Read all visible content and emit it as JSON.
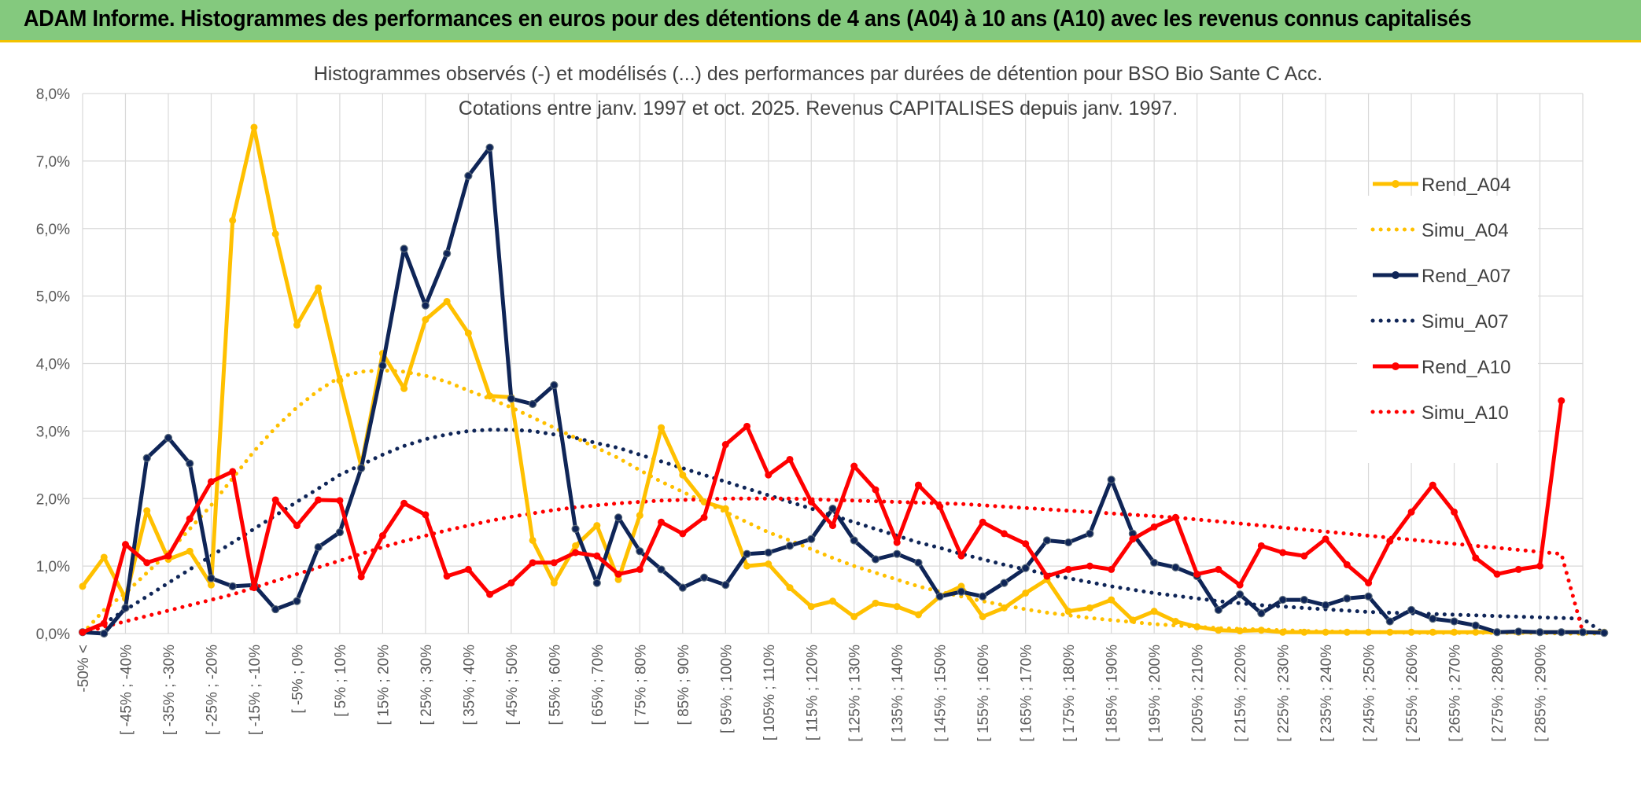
{
  "header": {
    "title": "ADAM Informe. Histogrammes des performances en euros pour des détentions de 4 ans (A04) à 10 ans (A10) avec les revenus connus capitalisés"
  },
  "colors": {
    "banner": "#84c97e",
    "accent": "#f2c200",
    "A04": "#ffc000",
    "A07": "#0f2557",
    "A10": "#ff0000",
    "grid": "#d9d9d9"
  },
  "chart_data": {
    "type": "line",
    "title": "Histogrammes observés (-) et modélisés (...) des performances par durées de détention pour BSO Bio Sante C Acc.",
    "subtitle": "Cotations entre janv. 1997 et oct. 2025. Revenus CAPITALISES depuis janv. 1997.",
    "xlabel": "",
    "ylabel": "",
    "ylim": [
      0,
      8
    ],
    "y_ticks": [
      "0,0%",
      "1,0%",
      "2,0%",
      "3,0%",
      "4,0%",
      "5,0%",
      "6,0%",
      "7,0%",
      "8,0%"
    ],
    "grid": true,
    "legend_position": "right",
    "x_tick_labels": [
      "-50% <",
      "[ -45% ; -40%",
      "[ -35% ; -30%",
      "[ -25% ; -20%",
      "[ -15% ; -10%",
      "[ -5% ; 0%",
      "[ 5% ; 10%",
      "[ 15% ; 20%",
      "[ 25% ; 30%",
      "[ 35% ; 40%",
      "[ 45% ; 50%",
      "[ 55% ; 60%",
      "[ 65% ; 70%",
      "[ 75% ; 80%",
      "[ 85% ; 90%",
      "[ 95% ; 100%",
      "[ 105% ; 110%",
      "[ 115% ; 120%",
      "[ 125% ; 130%",
      "[ 135% ; 140%",
      "[ 145% ; 150%",
      "[ 155% ; 160%",
      "[ 165% ; 170%",
      "[ 175% ; 180%",
      "[ 185% ; 190%",
      "[ 195% ; 200%",
      "[ 205% ; 210%",
      "[ 215% ; 220%",
      "[ 225% ; 230%",
      "[ 235% ; 240%",
      "[ 245% ; 250%",
      "[ 255% ; 260%",
      "[ 265% ; 270%",
      "[ 275% ; 280%",
      "[ 285% ; 290%"
    ],
    "series": [
      {
        "name": "Rend_A04",
        "style": "solid",
        "color": "#ffc000",
        "values": [
          0.7,
          1.13,
          0.52,
          1.82,
          1.1,
          1.22,
          0.72,
          6.12,
          7.5,
          5.92,
          4.57,
          5.12,
          3.75,
          2.48,
          4.15,
          3.63,
          4.65,
          4.92,
          4.45,
          3.52,
          3.5,
          1.38,
          0.75,
          1.3,
          1.6,
          0.8,
          1.75,
          3.05,
          2.35,
          1.95,
          1.85,
          1.0,
          1.03,
          0.68,
          0.4,
          0.48,
          0.25,
          0.45,
          0.4,
          0.28,
          0.55,
          0.7,
          0.25,
          0.38,
          0.6,
          0.8,
          0.33,
          0.38,
          0.5,
          0.2,
          0.33,
          0.18,
          0.1,
          0.05,
          0.04,
          0.05,
          0.02,
          0.02,
          0.02,
          0.02,
          0.02,
          0.02,
          0.02,
          0.02,
          0.02,
          0.02,
          0.02,
          0.02,
          0.02,
          0.02,
          0.02,
          0.02
        ]
      },
      {
        "name": "Simu_A04",
        "style": "dotted",
        "color": "#ffc000",
        "values": [
          0.0,
          0.35,
          0.6,
          0.9,
          1.2,
          1.55,
          1.9,
          2.3,
          2.7,
          3.05,
          3.35,
          3.6,
          3.8,
          3.88,
          3.9,
          3.88,
          3.82,
          3.73,
          3.6,
          3.48,
          3.35,
          3.2,
          3.05,
          2.9,
          2.75,
          2.6,
          2.42,
          2.25,
          2.1,
          1.95,
          1.8,
          1.65,
          1.5,
          1.38,
          1.25,
          1.12,
          1.0,
          0.9,
          0.8,
          0.7,
          0.62,
          0.55,
          0.48,
          0.42,
          0.36,
          0.31,
          0.27,
          0.23,
          0.2,
          0.17,
          0.14,
          0.12,
          0.1,
          0.08,
          0.07,
          0.06,
          0.05,
          0.04,
          0.03,
          0.03,
          0.02,
          0.02,
          0.01,
          0.01,
          0.01,
          0.01,
          0.01,
          0.01,
          0.01,
          0.0,
          0.0,
          0.0
        ]
      },
      {
        "name": "Rend_A07",
        "style": "solid",
        "color": "#0f2557",
        "values": [
          0.02,
          0.0,
          0.38,
          2.6,
          2.9,
          2.52,
          0.82,
          0.7,
          0.72,
          0.36,
          0.48,
          1.28,
          1.5,
          2.45,
          3.97,
          5.7,
          4.86,
          5.63,
          6.78,
          7.2,
          3.48,
          3.4,
          3.68,
          1.55,
          0.75,
          1.72,
          1.22,
          0.95,
          0.68,
          0.83,
          0.72,
          1.18,
          1.2,
          1.3,
          1.4,
          1.85,
          1.38,
          1.1,
          1.18,
          1.05,
          0.55,
          0.62,
          0.55,
          0.75,
          0.97,
          1.38,
          1.35,
          1.48,
          2.28,
          1.48,
          1.05,
          0.98,
          0.85,
          0.35,
          0.58,
          0.3,
          0.5,
          0.5,
          0.42,
          0.52,
          0.55,
          0.18,
          0.35,
          0.22,
          0.18,
          0.12,
          0.02,
          0.03,
          0.02,
          0.02,
          0.02,
          0.01
        ]
      },
      {
        "name": "Simu_A07",
        "style": "dotted",
        "color": "#0f2557",
        "values": [
          0.0,
          0.15,
          0.35,
          0.55,
          0.75,
          0.95,
          1.15,
          1.35,
          1.55,
          1.75,
          1.95,
          2.15,
          2.35,
          2.5,
          2.65,
          2.78,
          2.88,
          2.95,
          3.0,
          3.02,
          3.02,
          3.0,
          2.95,
          2.9,
          2.82,
          2.75,
          2.65,
          2.55,
          2.45,
          2.35,
          2.25,
          2.15,
          2.05,
          1.95,
          1.85,
          1.75,
          1.65,
          1.55,
          1.45,
          1.35,
          1.27,
          1.18,
          1.1,
          1.02,
          0.95,
          0.88,
          0.82,
          0.76,
          0.7,
          0.65,
          0.6,
          0.56,
          0.52,
          0.48,
          0.45,
          0.42,
          0.4,
          0.38,
          0.36,
          0.34,
          0.32,
          0.31,
          0.3,
          0.29,
          0.28,
          0.27,
          0.26,
          0.25,
          0.24,
          0.23,
          0.22,
          0.0
        ]
      },
      {
        "name": "Rend_A10",
        "style": "solid",
        "color": "#ff0000",
        "values": [
          0.02,
          0.15,
          1.32,
          1.05,
          1.15,
          1.7,
          2.25,
          2.4,
          0.68,
          1.98,
          1.6,
          1.98,
          1.97,
          0.84,
          1.45,
          1.93,
          1.76,
          0.85,
          0.95,
          0.58,
          0.75,
          1.05,
          1.05,
          1.2,
          1.15,
          0.88,
          0.95,
          1.65,
          1.48,
          1.72,
          2.8,
          3.07,
          2.35,
          2.58,
          1.95,
          1.6,
          2.48,
          2.13,
          1.35,
          2.2,
          1.88,
          1.15,
          1.65,
          1.48,
          1.33,
          0.85,
          0.95,
          1.0,
          0.95,
          1.4,
          1.58,
          1.72,
          0.88,
          0.95,
          0.72,
          1.3,
          1.2,
          1.15,
          1.4,
          1.02,
          0.75,
          1.37,
          1.8,
          2.2,
          1.8,
          1.12,
          0.88,
          0.95,
          1.0,
          3.45
        ]
      },
      {
        "name": "Simu_A10",
        "style": "dotted",
        "color": "#ff0000",
        "values": [
          0.0,
          0.1,
          0.18,
          0.26,
          0.34,
          0.42,
          0.5,
          0.58,
          0.68,
          0.78,
          0.88,
          0.98,
          1.08,
          1.18,
          1.28,
          1.37,
          1.45,
          1.53,
          1.6,
          1.67,
          1.73,
          1.78,
          1.83,
          1.87,
          1.9,
          1.93,
          1.95,
          1.97,
          1.98,
          1.99,
          2.0,
          2.0,
          2.0,
          2.0,
          1.99,
          1.98,
          1.97,
          1.96,
          1.95,
          1.94,
          1.93,
          1.92,
          1.9,
          1.88,
          1.86,
          1.84,
          1.82,
          1.8,
          1.78,
          1.76,
          1.74,
          1.72,
          1.69,
          1.66,
          1.63,
          1.6,
          1.57,
          1.54,
          1.51,
          1.48,
          1.45,
          1.42,
          1.39,
          1.36,
          1.33,
          1.3,
          1.27,
          1.24,
          1.21,
          1.18,
          0.02
        ]
      }
    ]
  }
}
